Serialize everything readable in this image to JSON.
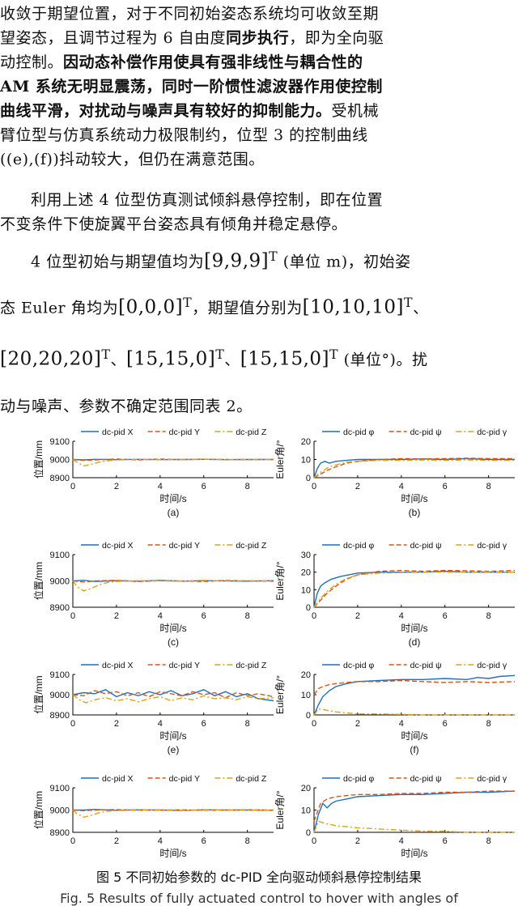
{
  "paragraph1": {
    "l1": "收敛于期望位置，对于不同初始姿态系统均可收敛至期",
    "l2a": "望姿态，且调节过程为 6 自由度",
    "l2b": "同步执行",
    "l2c": "，即为全向驱",
    "l3a": "动控制。",
    "l3b": "因动态补偿作用使具有强非线性与耦合性的",
    "l4": "AM 系统无明显震荡，同时一阶惯性滤波器作用使控制",
    "l5a": "曲线平滑，对扰动与噪声具有较好的抑制能力。",
    "l5b": "受机械",
    "l6": "臂位型与仿真系统动力极限制约，位型 3 的控制曲线",
    "l7": "((e),(f))抖动较大，但仍在满意范围。"
  },
  "paragraph2": {
    "l1": "利用上述 4 位型仿真测试倾斜悬停控制，即在位置",
    "l2": "不变条件下使旋翼平台姿态具有倾角并稳定悬停。"
  },
  "paragraph3": {
    "l1a": "4 位型初始与期望值均为",
    "l1eq": "[9,9,9]",
    "l1b": "(单位 m)，初始姿",
    "l2a": "态 Euler 角均为",
    "l2eq": "[0,0,0]",
    "l2b": "，期望值分别为",
    "l2eq2": "[10,10,10]",
    "l3eq1": "[20,20,20]",
    "l3eq2": "[15,15,0]",
    "l3eq3": "[15,15,0]",
    "l3b": "(单位°)。扰",
    "l4": "动与噪声、参数不确定范围同表 2。",
    "sup": "T",
    "sep": "、"
  },
  "caption": {
    "cn": "图 5 不同初始参数的 dc-PID 全向驱动倾斜悬停控制结果",
    "en": "Fig. 5 Results of fully actuated control to hover with angles of"
  },
  "colors": {
    "x": "#1f6fbf",
    "y": "#d9541a",
    "z": "#d9a21a"
  },
  "chart_data": [
    {
      "id": "a",
      "type": "line",
      "ylabel": "位置/mm",
      "xlabel": "时间/s",
      "label": "(a)",
      "xlim": [
        0,
        9.2
      ],
      "ylim": [
        8900,
        9100
      ],
      "yticks": [
        8900,
        9000,
        9100
      ],
      "xticks": [
        0,
        2,
        4,
        6,
        8
      ],
      "series": [
        {
          "name": "dc-pid X",
          "style": "solid",
          "x": [
            0,
            0.5,
            1,
            2,
            3,
            4,
            5,
            6,
            7,
            8,
            9.2
          ],
          "y": [
            9000,
            8998,
            9001,
            8999,
            9001,
            8999,
            9000,
            9001,
            8999,
            9000,
            9000
          ]
        },
        {
          "name": "dc-pid Y",
          "style": "dash",
          "x": [
            0,
            0.5,
            1,
            2,
            3,
            4,
            5,
            6,
            7,
            8,
            9.2
          ],
          "y": [
            9000,
            8995,
            8998,
            9002,
            8998,
            9002,
            8999,
            9001,
            9000,
            8999,
            9000
          ]
        },
        {
          "name": "dc-pid Z",
          "style": "dashdot",
          "x": [
            0,
            0.2,
            0.5,
            0.8,
            1.2,
            1.6,
            2,
            3,
            4,
            5,
            6,
            7,
            8,
            9.2
          ],
          "y": [
            9000,
            8985,
            8965,
            8972,
            8985,
            8993,
            8997,
            9001,
            8999,
            9000,
            9002,
            8999,
            9001,
            9000
          ]
        }
      ]
    },
    {
      "id": "b",
      "type": "line",
      "ylabel": "Euler角/°",
      "xlabel": "时间/s",
      "label": "(b)",
      "xlim": [
        0,
        9.2
      ],
      "ylim": [
        0,
        20
      ],
      "yticks": [
        0,
        10,
        20
      ],
      "xticks": [
        0,
        2,
        4,
        6,
        8
      ],
      "series": [
        {
          "name": "dc-pid φ",
          "style": "solid",
          "x": [
            0,
            0.15,
            0.3,
            0.5,
            0.7,
            1,
            1.5,
            2,
            3,
            4,
            5,
            6,
            7,
            8,
            9.2
          ],
          "y": [
            0,
            5,
            8,
            9,
            8,
            9,
            9.5,
            10,
            10,
            10,
            10.3,
            10,
            10.5,
            10,
            10
          ]
        },
        {
          "name": "dc-pid ψ",
          "style": "dash",
          "x": [
            0,
            0.3,
            0.6,
            1,
            1.5,
            2,
            3,
            4,
            5,
            6,
            7,
            8,
            9.2
          ],
          "y": [
            0,
            2,
            4,
            6,
            8,
            9,
            10,
            10.5,
            10.3,
            10.5,
            10.7,
            10.5,
            10.5
          ]
        },
        {
          "name": "dc-pid γ",
          "style": "dashdot",
          "x": [
            0,
            0.3,
            0.7,
            1,
            1.5,
            2,
            3,
            4,
            5,
            6,
            7,
            8,
            9.2
          ],
          "y": [
            0,
            3,
            6,
            7,
            8.5,
            9,
            9.5,
            9.5,
            9.7,
            9.5,
            9.8,
            9.5,
            9.5
          ]
        }
      ]
    },
    {
      "id": "c",
      "type": "line",
      "ylabel": "位置/mm",
      "xlabel": "时间/s",
      "label": "(c)",
      "xlim": [
        0,
        9.2
      ],
      "ylim": [
        8900,
        9100
      ],
      "yticks": [
        8900,
        9000,
        9100
      ],
      "xticks": [
        0,
        2,
        4,
        6,
        8
      ],
      "series": [
        {
          "name": "dc-pid X",
          "style": "solid",
          "x": [
            0,
            0.5,
            1,
            2,
            3,
            4,
            5,
            6,
            7,
            8,
            9.2
          ],
          "y": [
            9000,
            9002,
            8998,
            9001,
            8999,
            9002,
            8999,
            9001,
            9000,
            8999,
            9001
          ]
        },
        {
          "name": "dc-pid Y",
          "style": "dash",
          "x": [
            0,
            0.5,
            1,
            2,
            3,
            4,
            5,
            6,
            7,
            8,
            9.2
          ],
          "y": [
            9000,
            8996,
            9000,
            9002,
            8998,
            9001,
            9000,
            8998,
            9002,
            9000,
            8999
          ]
        },
        {
          "name": "dc-pid Z",
          "style": "dashdot",
          "x": [
            0,
            0.2,
            0.5,
            0.8,
            1.2,
            1.6,
            2,
            3,
            4,
            5,
            6,
            7,
            8,
            9.2
          ],
          "y": [
            9000,
            8978,
            8962,
            8970,
            8985,
            8994,
            8998,
            9001,
            9000,
            8999,
            9002,
            9000,
            9001,
            9000
          ]
        }
      ]
    },
    {
      "id": "d",
      "type": "line",
      "ylabel": "Euler角/°",
      "xlabel": "时间/s",
      "label": "(d)",
      "xlim": [
        0,
        9.2
      ],
      "ylim": [
        0,
        30
      ],
      "yticks": [
        0,
        10,
        20,
        30
      ],
      "xticks": [
        0,
        2,
        4,
        6,
        8
      ],
      "series": [
        {
          "name": "dc-pid φ",
          "style": "solid",
          "x": [
            0,
            0.15,
            0.3,
            0.5,
            0.8,
            1.2,
            1.6,
            2,
            3,
            4,
            5,
            6,
            7,
            8,
            9.2
          ],
          "y": [
            0,
            8,
            12,
            14,
            16,
            17.5,
            18.5,
            19.5,
            20,
            20,
            20,
            20.5,
            20,
            20,
            20
          ]
        },
        {
          "name": "dc-pid ψ",
          "style": "dash",
          "x": [
            0,
            0.3,
            0.6,
            1,
            1.5,
            2,
            3,
            4,
            5,
            6,
            7,
            8,
            9.2
          ],
          "y": [
            0,
            4,
            8,
            12,
            16,
            18.5,
            20.5,
            21,
            20.5,
            21,
            20.8,
            20.5,
            21
          ]
        },
        {
          "name": "dc-pid γ",
          "style": "dashdot",
          "x": [
            0,
            0.3,
            0.6,
            1,
            1.5,
            2,
            3,
            4,
            5,
            6,
            7,
            8,
            9.2
          ],
          "y": [
            0,
            5,
            9,
            13,
            16.5,
            18.5,
            19.5,
            19.8,
            20,
            20,
            20,
            20.2,
            20
          ]
        }
      ]
    },
    {
      "id": "e",
      "type": "line",
      "ylabel": "位置/mm",
      "xlabel": "时间/s",
      "label": "(e)",
      "xlim": [
        0,
        9.2
      ],
      "ylim": [
        8900,
        9100
      ],
      "yticks": [
        8900,
        9000,
        9100
      ],
      "xticks": [
        0,
        2,
        4,
        6,
        8
      ],
      "series": [
        {
          "name": "dc-pid X",
          "style": "solid",
          "x": [
            0,
            0.5,
            1,
            1.5,
            2,
            2.5,
            3,
            3.5,
            4,
            4.5,
            5,
            5.5,
            6,
            6.5,
            7,
            7.5,
            8,
            8.5,
            9.2
          ],
          "y": [
            9000,
            9010,
            9005,
            9025,
            8990,
            9010,
            8995,
            9015,
            9000,
            9020,
            8995,
            9005,
            9025,
            8995,
            9015,
            8990,
            9005,
            8980,
            8970
          ]
        },
        {
          "name": "dc-pid Y",
          "style": "dash",
          "x": [
            0,
            0.5,
            1,
            1.5,
            2,
            2.5,
            3,
            3.5,
            4,
            4.5,
            5,
            5.5,
            6,
            6.5,
            7,
            7.5,
            8,
            8.5,
            9.2
          ],
          "y": [
            9000,
            8995,
            9020,
            9005,
            9015,
            8995,
            9010,
            8990,
            9015,
            9005,
            8995,
            9015,
            9000,
            9010,
            8985,
            9010,
            8995,
            9005,
            8990
          ]
        },
        {
          "name": "dc-pid Z",
          "style": "dashdot",
          "x": [
            0,
            0.3,
            0.6,
            1,
            1.5,
            2,
            2.5,
            3,
            3.5,
            4,
            4.5,
            5,
            5.5,
            6,
            6.5,
            7,
            7.5,
            8,
            8.5,
            9.2
          ],
          "y": [
            9000,
            8975,
            8960,
            8975,
            8985,
            8970,
            8980,
            8965,
            8980,
            8990,
            8970,
            8985,
            8975,
            8995,
            8980,
            8985,
            8975,
            8990,
            8980,
            8985
          ]
        }
      ]
    },
    {
      "id": "f",
      "type": "line",
      "ylabel": "Euler角/°",
      "xlabel": "时间/s",
      "label": "(f)",
      "xlim": [
        0,
        9.2
      ],
      "ylim": [
        0,
        20
      ],
      "yticks": [
        0,
        10,
        20
      ],
      "xticks": [
        0,
        2,
        4,
        6,
        8
      ],
      "series": [
        {
          "name": "dc-pid φ",
          "style": "solid",
          "x": [
            0,
            0.2,
            0.4,
            0.7,
            1,
            1.5,
            2,
            3,
            4,
            5,
            6,
            7,
            7.5,
            8,
            8.5,
            9.2
          ],
          "y": [
            0,
            5,
            9,
            12,
            14,
            15.5,
            16.5,
            17,
            17.5,
            17.5,
            18,
            17.5,
            18.5,
            18,
            19,
            19.5
          ]
        },
        {
          "name": "dc-pid ψ",
          "style": "dash",
          "x": [
            0,
            0.2,
            0.4,
            0.7,
            1,
            1.5,
            2,
            3,
            4,
            5,
            6,
            7,
            8,
            9.2
          ],
          "y": [
            10,
            13,
            14,
            15,
            15.5,
            16,
            16.5,
            16.5,
            17,
            16.5,
            16,
            16.5,
            16,
            16.5
          ]
        },
        {
          "name": "dc-pid γ",
          "style": "dashdot",
          "x": [
            0,
            0.2,
            0.5,
            1,
            1.5,
            2,
            3,
            4,
            5,
            6,
            7,
            8,
            9.2
          ],
          "y": [
            0,
            3,
            2.5,
            1.5,
            1,
            0.5,
            0.5,
            0.3,
            0,
            0,
            0,
            0,
            0
          ]
        }
      ]
    },
    {
      "id": "g",
      "type": "line",
      "ylabel": "位置/mm",
      "xlabel": "时间/s",
      "label": "(g)",
      "xlim": [
        0,
        9.2
      ],
      "ylim": [
        8900,
        9100
      ],
      "yticks": [
        8900,
        9000,
        9100
      ],
      "xticks": [
        0,
        2,
        4,
        6,
        8
      ],
      "series": [
        {
          "name": "dc-pid X",
          "style": "solid",
          "x": [
            0,
            0.5,
            1,
            2,
            3,
            4,
            5,
            6,
            7,
            8,
            9.2
          ],
          "y": [
            9000,
            9000,
            9003,
            8999,
            9001,
            9000,
            8998,
            9001,
            9000,
            9000,
            8999
          ]
        },
        {
          "name": "dc-pid Y",
          "style": "dash",
          "x": [
            0,
            0.5,
            1,
            2,
            3,
            4,
            5,
            6,
            7,
            8,
            9.2
          ],
          "y": [
            9000,
            8997,
            9000,
            9002,
            8999,
            9000,
            9001,
            8999,
            9000,
            9001,
            9000
          ]
        },
        {
          "name": "dc-pid Z",
          "style": "dashdot",
          "x": [
            0,
            0.2,
            0.5,
            0.8,
            1.2,
            1.6,
            2,
            3,
            4,
            5,
            6,
            7,
            8,
            9.2
          ],
          "y": [
            9000,
            8982,
            8968,
            8975,
            8988,
            8995,
            8998,
            9000,
            9001,
            8999,
            9000,
            9001,
            8999,
            9000
          ]
        }
      ]
    },
    {
      "id": "h",
      "type": "line",
      "ylabel": "Euler角/°",
      "xlabel": "时间/s",
      "label": "(h)",
      "xlim": [
        0,
        9.2
      ],
      "ylim": [
        0,
        20
      ],
      "yticks": [
        0,
        10,
        20
      ],
      "xticks": [
        0,
        2,
        4,
        6,
        8
      ],
      "series": [
        {
          "name": "dc-pid φ",
          "style": "solid",
          "x": [
            0,
            0.2,
            0.4,
            0.6,
            0.8,
            1,
            1.5,
            2,
            3,
            4,
            5,
            6,
            7,
            8,
            9.2
          ],
          "y": [
            0,
            8,
            13,
            11,
            13,
            14,
            15,
            16,
            16.5,
            17,
            17,
            17.5,
            18,
            18,
            18.5
          ]
        },
        {
          "name": "dc-pid ψ",
          "style": "dash",
          "x": [
            0,
            0.3,
            0.6,
            1,
            1.5,
            2,
            3,
            4,
            5,
            6,
            7,
            8,
            9.2
          ],
          "y": [
            5,
            13,
            15,
            16,
            16.5,
            17,
            17,
            17.5,
            17.5,
            18,
            18,
            18.5,
            18.5
          ]
        },
        {
          "name": "dc-pid γ",
          "style": "dashdot",
          "x": [
            0,
            0.2,
            0.5,
            1,
            1.5,
            2,
            3,
            4,
            5,
            6,
            7,
            8,
            9.2
          ],
          "y": [
            0,
            5,
            4,
            3,
            2.5,
            2,
            1.5,
            1,
            0.5,
            0.5,
            0,
            0,
            0
          ]
        }
      ]
    }
  ]
}
